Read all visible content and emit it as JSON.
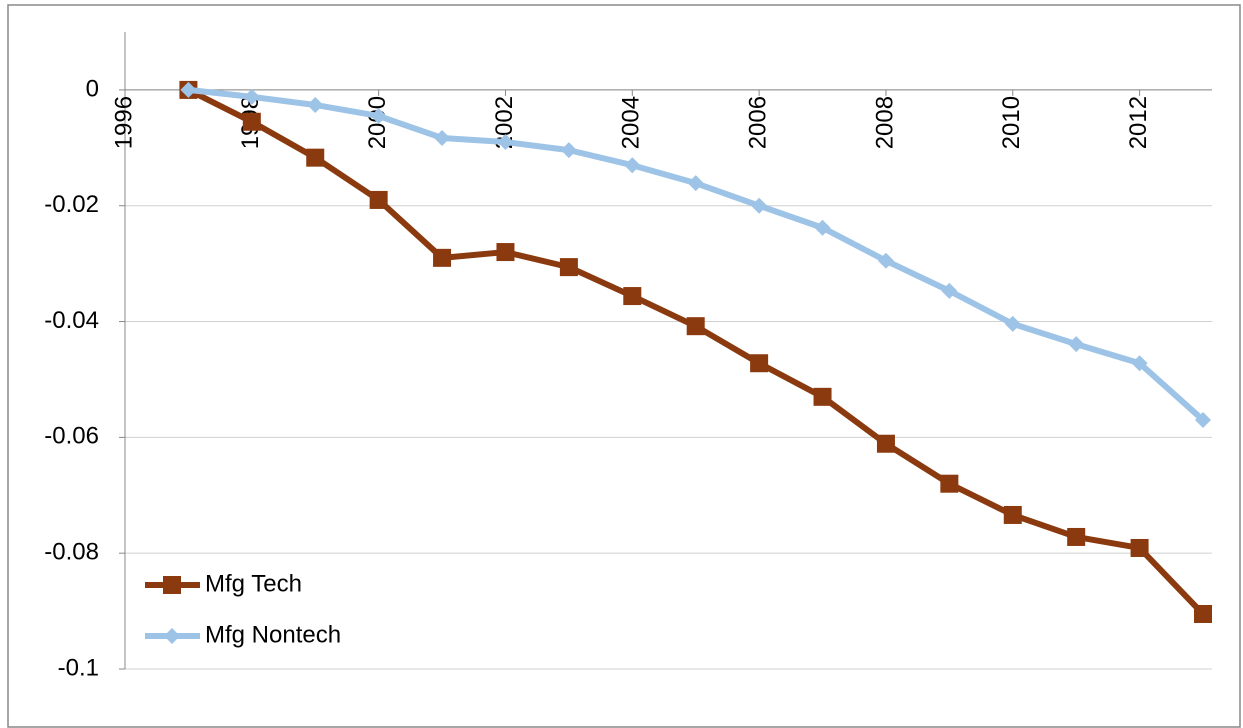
{
  "chart_data": {
    "type": "line",
    "x": [
      1997,
      1998,
      1999,
      2000,
      2001,
      2002,
      2003,
      2004,
      2005,
      2006,
      2007,
      2008,
      2009,
      2010,
      2011,
      2012,
      2013
    ],
    "series": [
      {
        "name": "Mfg Tech",
        "color": "#8b3a0f",
        "marker": "square",
        "values": [
          0,
          -0.0055,
          -0.0117,
          -0.019,
          -0.029,
          -0.028,
          -0.0306,
          -0.0356,
          -0.0408,
          -0.0472,
          -0.053,
          -0.0611,
          -0.068,
          -0.0734,
          -0.0772,
          -0.0791,
          -0.0905
        ]
      },
      {
        "name": "Mfg Nontech",
        "color": "#9dc3e6",
        "marker": "diamond",
        "values": [
          0,
          -0.0012,
          -0.0026,
          -0.0045,
          -0.0083,
          -0.009,
          -0.0104,
          -0.013,
          -0.0161,
          -0.02,
          -0.0238,
          -0.0295,
          -0.0347,
          -0.0404,
          -0.0439,
          -0.0472,
          -0.057
        ]
      }
    ],
    "xlim": [
      1996,
      2013
    ],
    "xticks": [
      1996,
      1998,
      2000,
      2002,
      2004,
      2006,
      2008,
      2010,
      2012
    ],
    "ylim": [
      -0.1,
      0.01
    ],
    "yticks": [
      0,
      -0.02,
      -0.04,
      -0.06,
      -0.08,
      -0.1
    ],
    "grid": true,
    "legend": "lower left"
  }
}
